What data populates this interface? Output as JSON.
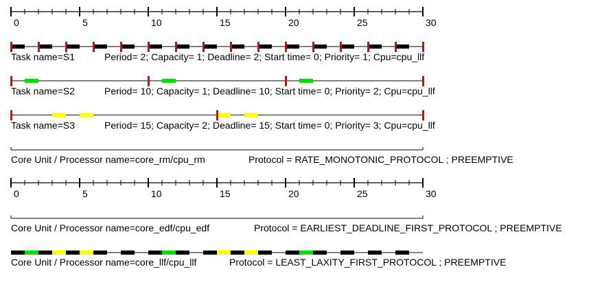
{
  "scale": {
    "start": 0,
    "end": 30,
    "major_every": 5,
    "labels": [
      "0",
      "5",
      "10",
      "15",
      "20",
      "25",
      "30"
    ]
  },
  "colors": {
    "line": "#000000",
    "release": "#e00000",
    "s1": "#000000",
    "s2": "#00e000",
    "s3": "#ffff00",
    "background": "#ffffff"
  },
  "tasks": [
    {
      "name_text": "Task name=S1",
      "params_text": "Period= 2; Capacity= 1; Deadline= 2; Start time= 0; Priority= 1; Cpu=cpu_llf",
      "color": "#000000",
      "releases": [
        0,
        2,
        4,
        6,
        8,
        10,
        12,
        14,
        16,
        18,
        20,
        22,
        24,
        26,
        28,
        30
      ],
      "exec": [
        0,
        2,
        4,
        6,
        8,
        10,
        12,
        14,
        16,
        18,
        20,
        22,
        24,
        26,
        28
      ]
    },
    {
      "name_text": "Task name=S2",
      "params_text": "Period= 10; Capacity= 1; Deadline= 10; Start time= 0; Priority= 2; Cpu=cpu_llf",
      "color": "#00e000",
      "releases": [
        0,
        10,
        20,
        30
      ],
      "exec": [
        1,
        11,
        21
      ]
    },
    {
      "name_text": "Task name=S3",
      "params_text": "Period= 15; Capacity= 2; Deadline= 15; Start time= 0; Priority= 3; Cpu=cpu_llf",
      "color": "#ffff00",
      "releases": [
        0,
        15,
        30
      ],
      "exec": [
        3,
        5,
        15,
        17
      ]
    }
  ],
  "processors": [
    {
      "name_text": "Core Unit / Processor name=core_rm/cpu_rm",
      "protocol_text": "Protocol = RATE_MONOTONIC_PROTOCOL ; PREEMPTIVE",
      "exec": []
    },
    {
      "name_text": "Core Unit / Processor name=core_edf/cpu_edf",
      "protocol_text": "Protocol = EARLIEST_DEADLINE_FIRST_PROTOCOL ; PREEMPTIVE",
      "exec": []
    },
    {
      "name_text": "Core Unit / Processor name=core_llf/cpu_llf",
      "protocol_text": "Protocol = LEAST_LAXITY_FIRST_PROTOCOL ; PREEMPTIVE",
      "exec": [
        {
          "t": 0,
          "task": 0
        },
        {
          "t": 1,
          "task": 1
        },
        {
          "t": 2,
          "task": 0
        },
        {
          "t": 3,
          "task": 2
        },
        {
          "t": 4,
          "task": 0
        },
        {
          "t": 5,
          "task": 2
        },
        {
          "t": 6,
          "task": 0
        },
        {
          "t": 8,
          "task": 0
        },
        {
          "t": 10,
          "task": 0
        },
        {
          "t": 11,
          "task": 1
        },
        {
          "t": 12,
          "task": 0
        },
        {
          "t": 14,
          "task": 0
        },
        {
          "t": 15,
          "task": 2
        },
        {
          "t": 16,
          "task": 0
        },
        {
          "t": 17,
          "task": 2
        },
        {
          "t": 18,
          "task": 0
        },
        {
          "t": 20,
          "task": 0
        },
        {
          "t": 21,
          "task": 1
        },
        {
          "t": 22,
          "task": 0
        },
        {
          "t": 24,
          "task": 0
        },
        {
          "t": 26,
          "task": 0
        },
        {
          "t": 28,
          "task": 0
        }
      ]
    }
  ]
}
